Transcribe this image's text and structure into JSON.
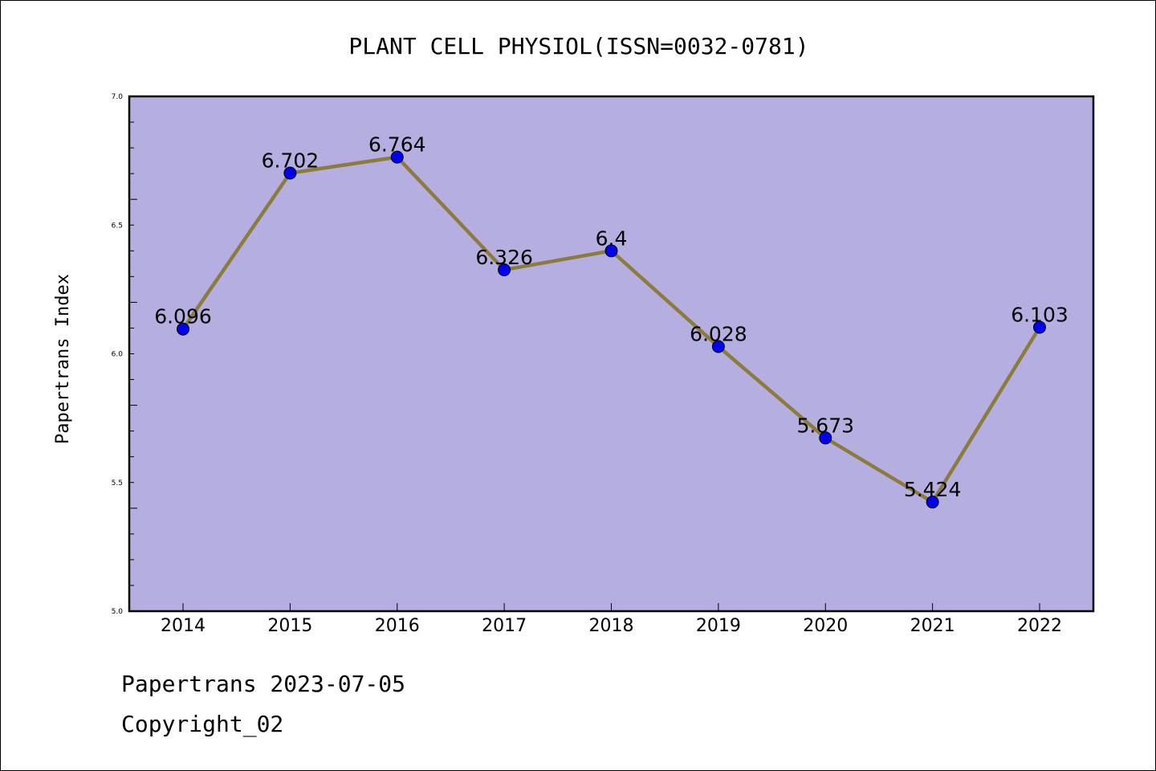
{
  "chart_data": {
    "type": "line",
    "title": "PLANT CELL PHYSIOL(ISSN=0032-0781)",
    "xlabel": "",
    "ylabel": "Papertrans Index",
    "categories": [
      "2014",
      "2015",
      "2016",
      "2017",
      "2018",
      "2019",
      "2020",
      "2021",
      "2022"
    ],
    "series": [
      {
        "values": [
          6.096,
          6.702,
          6.764,
          6.326,
          6.4,
          6.028,
          5.673,
          5.424,
          6.103
        ],
        "labels": [
          "6.096",
          "6.702",
          "6.764",
          "6.326",
          "6.4",
          "6.028",
          "5.673",
          "5.424",
          "6.103"
        ]
      }
    ],
    "ylim": [
      5.0,
      7.0
    ],
    "yticks": [
      5.0,
      5.5,
      6.0,
      6.5,
      7.0
    ],
    "ytick_labels": [
      "5.0",
      "5.5",
      "6.0",
      "6.5",
      "7.0"
    ],
    "grid": false,
    "colors": {
      "plot_background": "#b5aee1",
      "line": "#8c7c3c",
      "marker": "#0000ee"
    }
  },
  "footer": {
    "line1": "Papertrans 2023-07-05",
    "line2": "Copyright_02"
  }
}
